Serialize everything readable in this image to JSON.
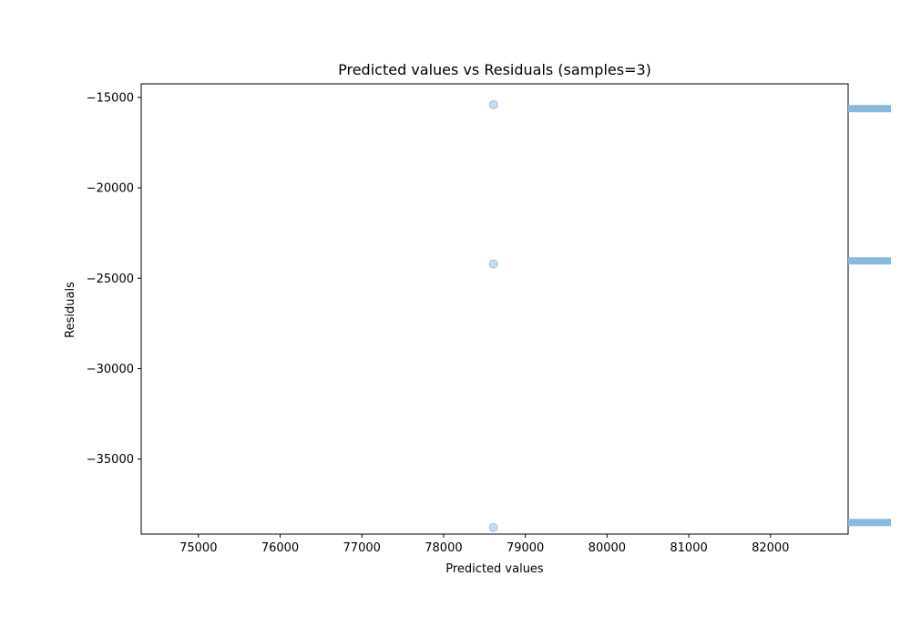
{
  "chart_data": {
    "type": "scatter",
    "title": "Predicted values vs Residuals (samples=3)",
    "xlabel": "Predicted values",
    "ylabel": "Residuals",
    "xlim": [
      74300,
      82950
    ],
    "ylim": [
      -39150,
      -14250
    ],
    "x_ticks": [
      {
        "value": 75000,
        "label": "75000"
      },
      {
        "value": 76000,
        "label": "76000"
      },
      {
        "value": 77000,
        "label": "77000"
      },
      {
        "value": 78000,
        "label": "78000"
      },
      {
        "value": 79000,
        "label": "79000"
      },
      {
        "value": 80000,
        "label": "80000"
      },
      {
        "value": 81000,
        "label": "81000"
      },
      {
        "value": 82000,
        "label": "82000"
      }
    ],
    "y_ticks": [
      {
        "value": -15000,
        "label": "−15000"
      },
      {
        "value": -20000,
        "label": "−20000"
      },
      {
        "value": -25000,
        "label": "−25000"
      },
      {
        "value": -30000,
        "label": "−30000"
      },
      {
        "value": -35000,
        "label": "−35000"
      }
    ],
    "points": [
      {
        "x": 78610,
        "y": -15400
      },
      {
        "x": 78610,
        "y": -24210
      },
      {
        "x": 78610,
        "y": -38790
      }
    ],
    "marginal_histogram": {
      "side": "right",
      "bins": [
        {
          "y": -15620,
          "count": 1
        },
        {
          "y": -24040,
          "count": 1
        },
        {
          "y": -38510,
          "count": 1
        }
      ]
    },
    "point_color": "#aecde8",
    "point_edge_color": "#8fb7dc",
    "histogram_color": "#8ab9dc",
    "grid": false
  }
}
